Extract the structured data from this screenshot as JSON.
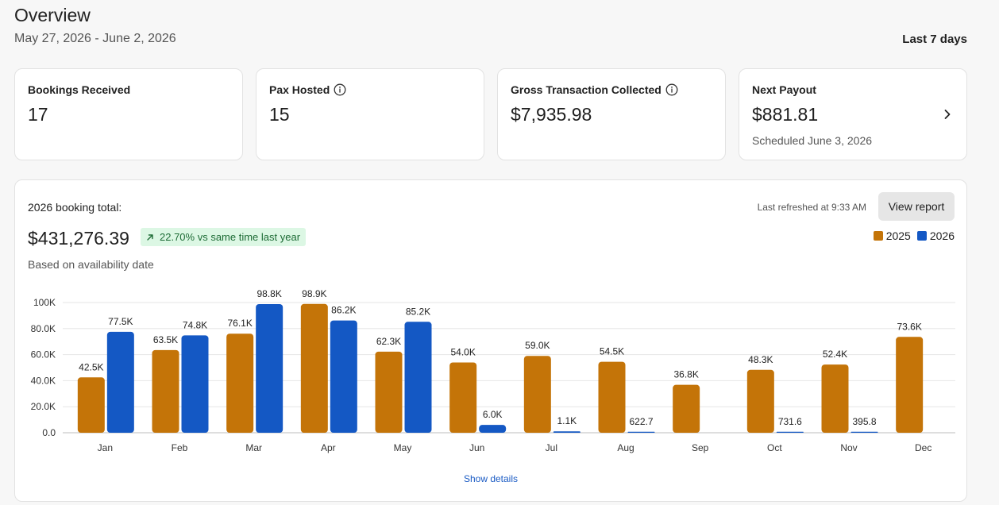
{
  "header": {
    "title": "Overview",
    "date_range": "May 27, 2026 - June 2, 2026",
    "period": "Last 7 days"
  },
  "kpis": [
    {
      "label": "Bookings Received",
      "value": "17",
      "info": false
    },
    {
      "label": "Pax Hosted",
      "value": "15",
      "info": true
    },
    {
      "label": "Gross Transaction Collected",
      "value": "$7,935.98",
      "info": true
    },
    {
      "label": "Next Payout",
      "value": "$881.81",
      "sub": "Scheduled June 3, 2026",
      "info": false
    }
  ],
  "booking_panel": {
    "total_label": "2026 booking total:",
    "total_value": "$431,276.39",
    "growth_text": "22.70% vs same time last year",
    "basis": "Based on availability date",
    "refresh": "Last refreshed at 9:33 AM",
    "view_report_label": "View report",
    "show_details_label": "Show details"
  },
  "colors": {
    "series_2025": "#c47408",
    "series_2026": "#1458c4",
    "growth_green": "#1d6b35"
  },
  "icons": [
    "info-icon",
    "chevron-right-icon",
    "arrow-up-right-icon"
  ],
  "chart_data": {
    "type": "bar",
    "categories": [
      "Jan",
      "Feb",
      "Mar",
      "Apr",
      "May",
      "Jun",
      "Jul",
      "Aug",
      "Sep",
      "Oct",
      "Nov",
      "Dec"
    ],
    "series": [
      {
        "name": "2025",
        "values": [
          42500,
          63500,
          76100,
          98900,
          62300,
          54000,
          59000,
          54500,
          36800,
          48300,
          52400,
          73600
        ],
        "labels": [
          "42.5K",
          "63.5K",
          "76.1K",
          "98.9K",
          "62.3K",
          "54.0K",
          "59.0K",
          "54.5K",
          "36.8K",
          "48.3K",
          "52.4K",
          "73.6K"
        ]
      },
      {
        "name": "2026",
        "values": [
          77500,
          74800,
          98800,
          86200,
          85200,
          6000,
          1100,
          622.7,
          null,
          731.6,
          395.8,
          null
        ],
        "labels": [
          "77.5K",
          "74.8K",
          "98.8K",
          "86.2K",
          "85.2K",
          "6.0K",
          "1.1K",
          "622.7",
          "",
          "731.6",
          "395.8",
          ""
        ]
      }
    ],
    "yticks": [
      0,
      20000,
      40000,
      60000,
      80000,
      100000
    ],
    "ytick_labels": [
      "0.0",
      "20.0K",
      "40.0K",
      "60.0K",
      "80.0K",
      "100K"
    ],
    "ylim": [
      0,
      100000
    ],
    "grid": true,
    "legend": "top-right"
  }
}
